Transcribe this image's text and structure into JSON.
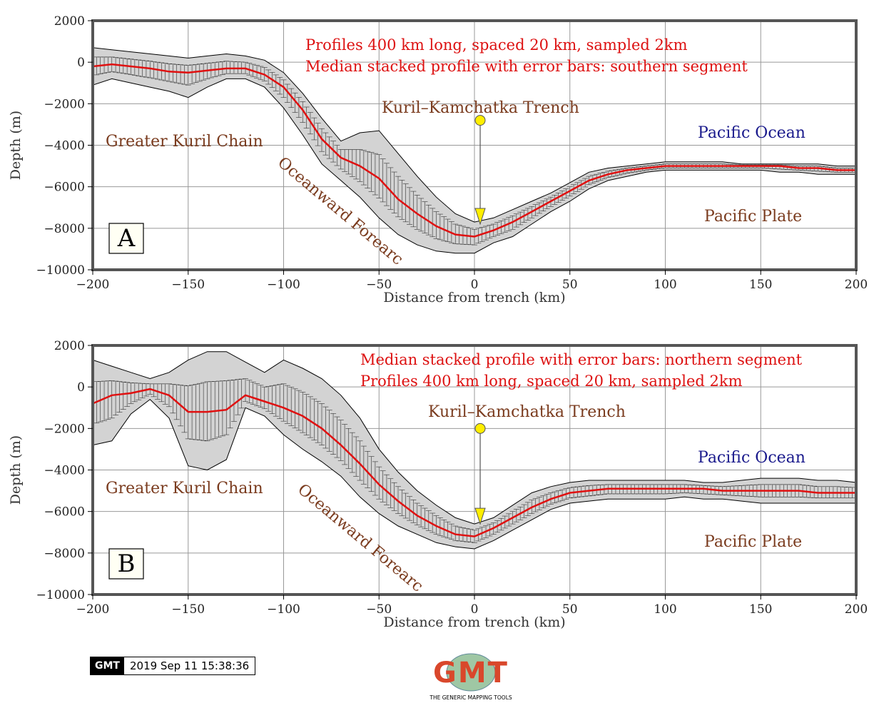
{
  "chart_data": [
    {
      "type": "area",
      "panel_letter": "A",
      "xlabel": "Distance from trench (km)",
      "ylabel": "Depth (m)",
      "xlim": [
        -200,
        200
      ],
      "ylim": [
        -10000,
        2000
      ],
      "xticks": [
        -200,
        -150,
        -100,
        -50,
        0,
        50,
        100,
        150,
        200
      ],
      "yticks": [
        2000,
        0,
        -2000,
        -4000,
        -6000,
        -8000,
        -10000
      ],
      "grid": true,
      "colors": {
        "median": "#e01010",
        "envelope": "#d3d3d3",
        "notes": "#dd1111",
        "place": "#7a3b1e",
        "ocean": "#1a1a8c",
        "marker": "#ffee00"
      },
      "notes": [
        "Profiles 400 km long, spaced 20 km, sampled 2km",
        "Median stacked profile with error bars: southern segment"
      ],
      "trench_label": "Kuril–Kamchatka Trench",
      "labels": {
        "chain": "Greater Kuril Chain",
        "forearc": "Oceanward Forearc",
        "ocean": "Pacific Ocean",
        "plate": "Pacific Plate"
      },
      "trench_marker": {
        "x": 3,
        "y_start": -2800,
        "y_end": -7800
      },
      "x": [
        -200,
        -190,
        -180,
        -170,
        -160,
        -150,
        -140,
        -130,
        -120,
        -110,
        -100,
        -90,
        -80,
        -70,
        -60,
        -50,
        -40,
        -30,
        -20,
        -10,
        0,
        10,
        20,
        30,
        40,
        50,
        60,
        70,
        80,
        90,
        100,
        110,
        120,
        130,
        140,
        150,
        160,
        170,
        180,
        190,
        200
      ],
      "series": [
        {
          "values": [
            -200,
            -100,
            -200,
            -300,
            -450,
            -500,
            -400,
            -300,
            -300,
            -600,
            -1200,
            -2300,
            -3700,
            -4600,
            -5000,
            -5600,
            -6600,
            -7300,
            -7900,
            -8300,
            -8400,
            -8100,
            -7700,
            -7200,
            -6700,
            -6200,
            -5700,
            -5400,
            -5200,
            -5100,
            -5000,
            -5000,
            -5000,
            -5000,
            -5000,
            -5000,
            -5000,
            -5100,
            -5100,
            -5200,
            -5200
          ]
        },
        {
          "values": [
            700,
            600,
            500,
            400,
            300,
            200,
            300,
            400,
            300,
            100,
            -500,
            -1500,
            -2700,
            -3800,
            -3400,
            -3300,
            -4400,
            -5500,
            -6500,
            -7300,
            -7700,
            -7500,
            -7100,
            -6700,
            -6300,
            -5800,
            -5300,
            -5100,
            -5000,
            -4900,
            -4800,
            -4800,
            -4800,
            -4800,
            -4900,
            -4900,
            -4900,
            -4900,
            -4900,
            -5000,
            -5000
          ]
        },
        {
          "values": [
            -1100,
            -800,
            -1000,
            -1200,
            -1400,
            -1700,
            -1200,
            -800,
            -800,
            -1200,
            -2200,
            -3500,
            -4900,
            -5700,
            -6500,
            -7500,
            -8300,
            -8800,
            -9100,
            -9200,
            -9200,
            -8700,
            -8400,
            -7800,
            -7200,
            -6700,
            -6100,
            -5700,
            -5500,
            -5300,
            -5200,
            -5200,
            -5200,
            -5200,
            -5200,
            -5200,
            -5300,
            -5300,
            -5400,
            -5400,
            -5400
          ]
        }
      ]
    },
    {
      "type": "area",
      "panel_letter": "B",
      "xlabel": "Distance from trench (km)",
      "ylabel": "Depth (m)",
      "xlim": [
        -200,
        200
      ],
      "ylim": [
        -10000,
        2000
      ],
      "xticks": [
        -200,
        -150,
        -100,
        -50,
        0,
        50,
        100,
        150,
        200
      ],
      "yticks": [
        2000,
        0,
        -2000,
        -4000,
        -6000,
        -8000,
        -10000
      ],
      "grid": true,
      "colors": {
        "median": "#e01010",
        "envelope": "#d3d3d3",
        "notes": "#dd1111",
        "place": "#7a3b1e",
        "ocean": "#1a1a8c",
        "marker": "#ffee00"
      },
      "notes": [
        "Median stacked profile with error bars: northern segment",
        "Profiles 400 km long, spaced 20 km, sampled 2km"
      ],
      "trench_label": "Kuril–Kamchatka Trench",
      "labels": {
        "chain": "Greater Kuril Chain",
        "forearc": "Oceanward Forearc",
        "ocean": "Pacific Ocean",
        "plate": "Pacific Plate"
      },
      "trench_marker": {
        "x": 3,
        "y_start": -2000,
        "y_end": -6600
      },
      "x": [
        -200,
        -190,
        -180,
        -170,
        -160,
        -150,
        -140,
        -130,
        -120,
        -110,
        -100,
        -90,
        -80,
        -70,
        -60,
        -50,
        -40,
        -30,
        -20,
        -10,
        0,
        10,
        20,
        30,
        40,
        50,
        60,
        70,
        80,
        90,
        100,
        110,
        120,
        130,
        140,
        150,
        160,
        170,
        180,
        190,
        200
      ],
      "series": [
        {
          "values": [
            -800,
            -400,
            -300,
            -100,
            -400,
            -1200,
            -1200,
            -1100,
            -400,
            -700,
            -1000,
            -1400,
            -2000,
            -2800,
            -3700,
            -4700,
            -5500,
            -6200,
            -6700,
            -7100,
            -7200,
            -6800,
            -6300,
            -5800,
            -5400,
            -5100,
            -5000,
            -4900,
            -4900,
            -4900,
            -4900,
            -4900,
            -4900,
            -5000,
            -5000,
            -5000,
            -5000,
            -5000,
            -5100,
            -5100,
            -5100
          ]
        },
        {
          "values": [
            1300,
            1000,
            700,
            400,
            700,
            1300,
            1700,
            1700,
            1200,
            700,
            1300,
            900,
            400,
            -400,
            -1500,
            -3000,
            -4100,
            -5000,
            -5700,
            -6300,
            -6600,
            -6300,
            -5700,
            -5100,
            -4800,
            -4600,
            -4500,
            -4500,
            -4500,
            -4500,
            -4500,
            -4500,
            -4600,
            -4600,
            -4500,
            -4400,
            -4400,
            -4400,
            -4500,
            -4500,
            -4600
          ]
        },
        {
          "values": [
            -2800,
            -2600,
            -1300,
            -600,
            -1500,
            -3800,
            -4000,
            -3500,
            -1000,
            -1400,
            -2300,
            -3000,
            -3600,
            -4300,
            -5300,
            -6100,
            -6700,
            -7100,
            -7500,
            -7700,
            -7800,
            -7400,
            -6900,
            -6400,
            -5900,
            -5600,
            -5500,
            -5400,
            -5400,
            -5400,
            -5400,
            -5300,
            -5400,
            -5400,
            -5500,
            -5600,
            -5600,
            -5600,
            -5600,
            -5600,
            -5600
          ]
        }
      ]
    }
  ],
  "footer": {
    "gmt_badge": "GMT",
    "timestamp": "2019 Sep 11 15:38:36",
    "logo_text": "GMT",
    "logo_subtitle": "THE GENERIC MAPPING TOOLS"
  }
}
